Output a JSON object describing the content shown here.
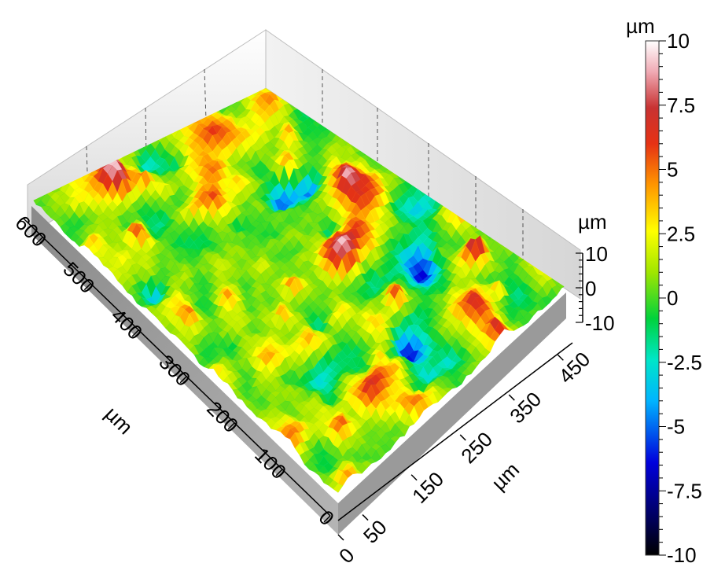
{
  "chart_data": {
    "type": "surface",
    "title": "",
    "x_axis": {
      "label": "µm",
      "ticks": [
        0,
        100,
        200,
        300,
        400,
        500,
        600
      ],
      "range": [
        0,
        640
      ]
    },
    "y_axis": {
      "label": "µm",
      "ticks": [
        0,
        50,
        150,
        250,
        350,
        450
      ],
      "range": [
        0,
        480
      ]
    },
    "z_axis": {
      "label": "µm",
      "ticks": [
        10,
        0,
        -10
      ],
      "range": [
        -10,
        10
      ]
    },
    "colorbar": {
      "label": "µm",
      "ticks": [
        "10",
        "7.5",
        "5",
        "2.5",
        "0",
        "-2.5",
        "-5",
        "-7.5",
        "-10"
      ],
      "range": [
        -10,
        10
      ],
      "colormap": [
        "#000000",
        "#0000c8",
        "#00e6ff",
        "#00d23c",
        "#ffff00",
        "#ff8c00",
        "#d21e1e",
        "#ffffff"
      ]
    }
  }
}
